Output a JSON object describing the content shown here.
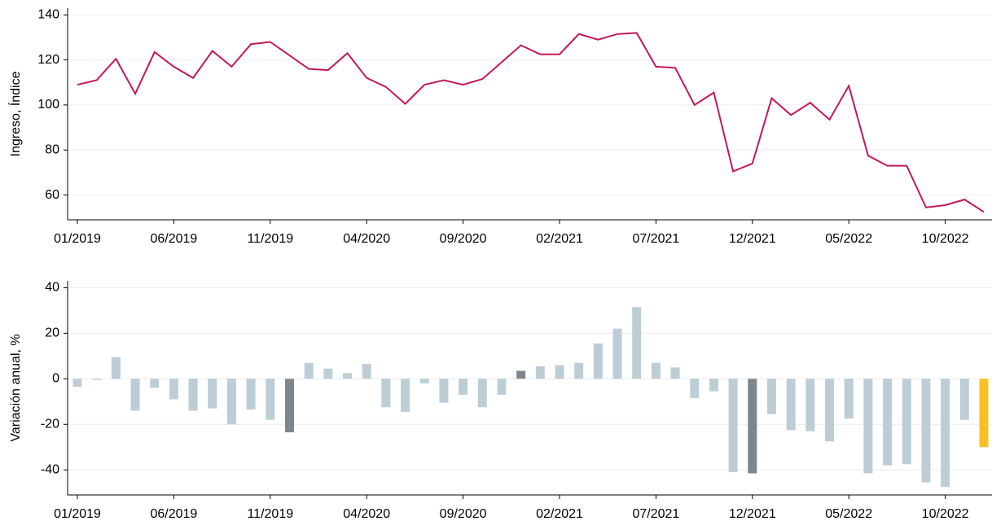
{
  "chart_data": [
    {
      "type": "line",
      "y_label": "Ingreso, Índice",
      "categories": [
        "01/2019",
        null,
        null,
        null,
        null,
        "06/2019",
        null,
        null,
        null,
        null,
        "11/2019",
        null,
        null,
        null,
        null,
        "04/2020",
        null,
        null,
        null,
        null,
        "09/2020",
        null,
        null,
        null,
        null,
        "02/2021",
        null,
        null,
        null,
        null,
        "07/2021",
        null,
        null,
        null,
        null,
        "12/2021",
        null,
        null,
        null,
        null,
        "05/2022",
        null,
        null,
        null,
        null,
        "10/2022",
        null,
        null
      ],
      "series": [
        {
          "color": "#c2185b",
          "values": [
            109,
            111,
            120.5,
            105,
            123.5,
            117,
            112,
            124,
            117,
            127,
            128,
            122,
            116,
            115.5,
            123,
            112,
            108,
            100.5,
            109,
            111,
            109,
            111.5,
            119,
            126.5,
            122.5,
            122.5,
            131.5,
            129,
            131.5,
            132,
            117,
            116.5,
            100,
            105.5,
            70.5,
            74,
            103,
            95.5,
            101,
            93.5,
            108.5,
            77.5,
            73,
            73,
            54.5,
            55.5,
            58,
            52.5
          ]
        }
      ],
      "ylim": [
        49,
        143
      ],
      "yticks": [
        60,
        80,
        100,
        120,
        140
      ],
      "grid": true
    },
    {
      "type": "bar",
      "y_label": "Variación anual, %",
      "categories": [
        "01/2019",
        null,
        null,
        null,
        null,
        "06/2019",
        null,
        null,
        null,
        null,
        "11/2019",
        null,
        null,
        null,
        null,
        "04/2020",
        null,
        null,
        null,
        null,
        "09/2020",
        null,
        null,
        null,
        null,
        "02/2021",
        null,
        null,
        null,
        null,
        "07/2021",
        null,
        null,
        null,
        null,
        "12/2021",
        null,
        null,
        null,
        null,
        "05/2022",
        null,
        null,
        null,
        null,
        "10/2022",
        null,
        null
      ],
      "values": [
        -3.5,
        -0.5,
        9.5,
        -14,
        -4,
        -9,
        -14,
        -13,
        -20,
        -13.5,
        -18,
        -23.5,
        7,
        4.5,
        2.5,
        6.5,
        -12.5,
        -14.5,
        -2,
        -10.5,
        -7,
        -12.5,
        -7,
        3.5,
        5.5,
        6,
        7,
        15.5,
        22,
        31.5,
        7,
        5,
        -8.5,
        -5.5,
        -41,
        -41.5,
        -15.5,
        -22.5,
        -23,
        -27.5,
        -17.5,
        -41.5,
        -38,
        -37.5,
        -45.5,
        -47.5,
        -18,
        -30
      ],
      "colors": [
        "#bccdd6",
        "#bccdd6",
        "#bccdd6",
        "#bccdd6",
        "#bccdd6",
        "#bccdd6",
        "#bccdd6",
        "#bccdd6",
        "#bccdd6",
        "#bccdd6",
        "#bccdd6",
        "#7d868c",
        "#bccdd6",
        "#bccdd6",
        "#bccdd6",
        "#bccdd6",
        "#bccdd6",
        "#bccdd6",
        "#bccdd6",
        "#bccdd6",
        "#bccdd6",
        "#bccdd6",
        "#bccdd6",
        "#7d868c",
        "#bccdd6",
        "#bccdd6",
        "#bccdd6",
        "#bccdd6",
        "#bccdd6",
        "#bccdd6",
        "#bccdd6",
        "#bccdd6",
        "#bccdd6",
        "#bccdd6",
        "#bccdd6",
        "#7d868c",
        "#bccdd6",
        "#bccdd6",
        "#bccdd6",
        "#bccdd6",
        "#bccdd6",
        "#bccdd6",
        "#bccdd6",
        "#bccdd6",
        "#bccdd6",
        "#bccdd6",
        "#bccdd6",
        "#fbbf24"
      ],
      "ylim": [
        -51,
        43
      ],
      "yticks": [
        -40,
        -20,
        0,
        20,
        40
      ],
      "grid": true
    }
  ]
}
